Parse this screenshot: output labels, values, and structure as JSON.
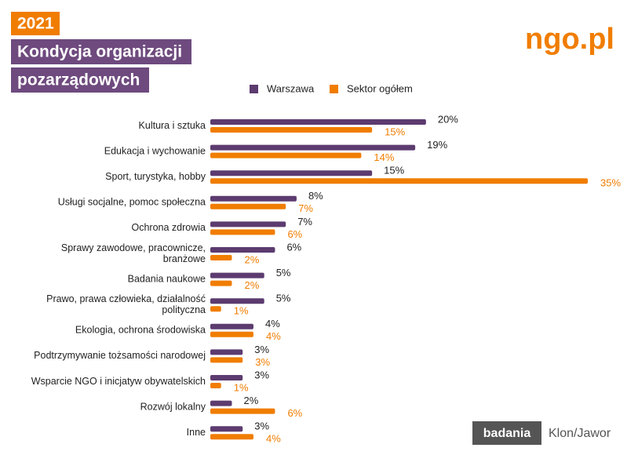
{
  "chart_data": {
    "type": "hbar-grouped",
    "year": "2021",
    "title_lines": [
      "Kondycja organizacji",
      "pozarządowych"
    ],
    "logo": "ngo.pl",
    "badge": "badania",
    "publisher": "Klon/Jawor",
    "categories": [
      [
        "Kultura i sztuka"
      ],
      [
        "Edukacja i wychowanie"
      ],
      [
        "Sport, turystyka, hobby"
      ],
      [
        "Usługi socjalne, pomoc społeczna"
      ],
      [
        "Ochrona zdrowia"
      ],
      [
        "Sprawy zawodowe, pracownicze,",
        "branżowe"
      ],
      [
        "Badania naukowe"
      ],
      [
        "Prawo, prawa człowieka, działalność",
        "polityczna"
      ],
      [
        "Ekologia, ochrona środowiska"
      ],
      [
        "Podtrzymywanie tożsamości narodowej"
      ],
      [
        "Wsparcie NGO i inicjatyw obywatelskich"
      ],
      [
        "Rozwój lokalny"
      ],
      [
        "Inne"
      ]
    ],
    "series": [
      {
        "name": "Warszawa",
        "color": "#5c3b6f",
        "label_color": "#222222",
        "values": [
          20,
          19,
          15,
          8,
          7,
          6,
          5,
          5,
          4,
          3,
          3,
          2,
          3
        ],
        "value_labels": [
          "20%",
          "19%",
          "15%",
          "8%",
          "7%",
          "6%",
          "5%",
          "5%",
          "4%",
          "3%",
          "3%",
          "2%",
          "3%"
        ]
      },
      {
        "name": "Sektor ogółem",
        "color": "#f07d00",
        "label_color": "#f07d00",
        "values": [
          15,
          14,
          35,
          7,
          6,
          2,
          2,
          1,
          4,
          3,
          1,
          6,
          4
        ],
        "value_labels": [
          "15%",
          "14%",
          "35%",
          "7%",
          "6%",
          "2%",
          "2%",
          "1%",
          "4%",
          "3%",
          "1%",
          "6%",
          "4%"
        ]
      }
    ],
    "xlim": [
      0,
      35
    ],
    "legend": "top"
  }
}
